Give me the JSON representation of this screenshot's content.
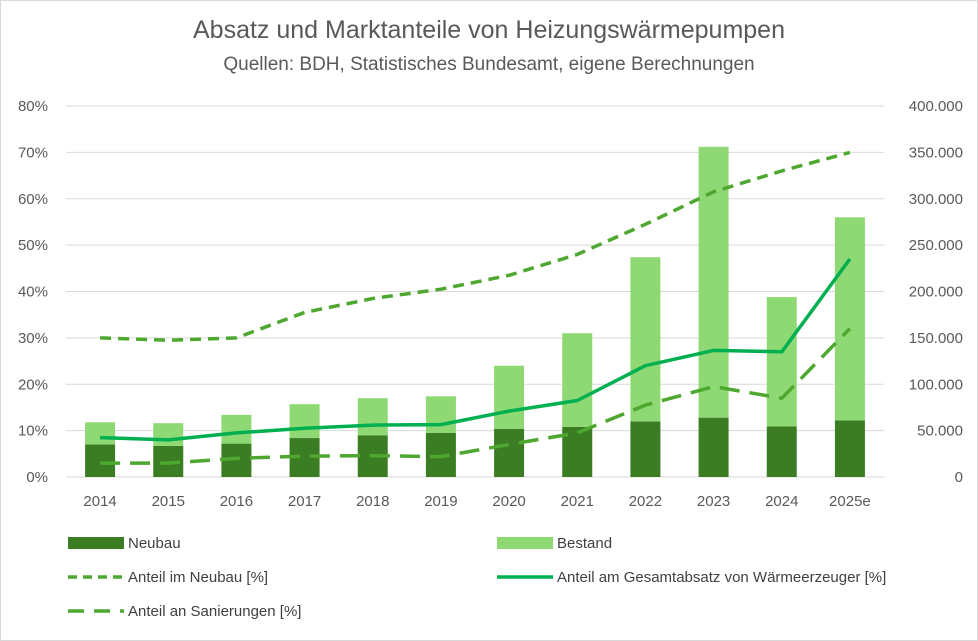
{
  "chart_data": {
    "type": "bar",
    "title": "Absatz und Marktanteile von Heizungswärmepumpen",
    "subtitle": "Quellen: BDH, Statistisches Bundesamt, eigene Berechnungen",
    "categories": [
      "2014",
      "2015",
      "2016",
      "2017",
      "2018",
      "2019",
      "2020",
      "2021",
      "2022",
      "2023",
      "2024",
      "2025e"
    ],
    "left_axis": {
      "ylim": [
        0,
        80
      ],
      "ticks": [
        "0%",
        "10%",
        "20%",
        "30%",
        "40%",
        "50%",
        "60%",
        "70%",
        "80%"
      ]
    },
    "right_axis": {
      "ylim": [
        0,
        400000
      ],
      "ticks": [
        "0",
        "50.000",
        "100.000",
        "150.000",
        "200.000",
        "250.000",
        "300.000",
        "350.000",
        "400.000"
      ]
    },
    "bar_series": [
      {
        "name": "Neubau",
        "color": "#3b7d23",
        "axis": "right",
        "values": [
          35000,
          33500,
          36000,
          42000,
          45000,
          47500,
          52000,
          54000,
          60000,
          64000,
          54500,
          61000
        ]
      },
      {
        "name": "Bestand",
        "color": "#8ed973",
        "axis": "right",
        "values": [
          24000,
          24500,
          31000,
          36500,
          40000,
          39500,
          68000,
          101000,
          177000,
          292000,
          139500,
          219000
        ]
      }
    ],
    "line_series": [
      {
        "name": "Anteil im Neubau [%]",
        "color": "#4ea72e",
        "style": "dashed",
        "axis": "left",
        "values": [
          30,
          29.5,
          30,
          35.5,
          38.5,
          40.5,
          43.5,
          48,
          54.5,
          61.5,
          66,
          70
        ]
      },
      {
        "name": "Anteil am Gesamtabsatz von Wärmeerzeuger [%]",
        "color": "#00b050",
        "style": "solid",
        "axis": "left",
        "values": [
          8.5,
          8,
          9.5,
          10.5,
          11.2,
          11.3,
          14.2,
          16.5,
          24,
          27.3,
          27,
          47
        ]
      },
      {
        "name": "Anteil an Sanierungen [%]",
        "color": "#4ea72e",
        "style": "long-dashed",
        "axis": "left",
        "values": [
          3,
          3,
          4,
          4.5,
          4.6,
          4.4,
          7,
          9.5,
          15.5,
          19.5,
          17,
          32
        ]
      }
    ],
    "grid": true,
    "legend_position": "bottom"
  }
}
